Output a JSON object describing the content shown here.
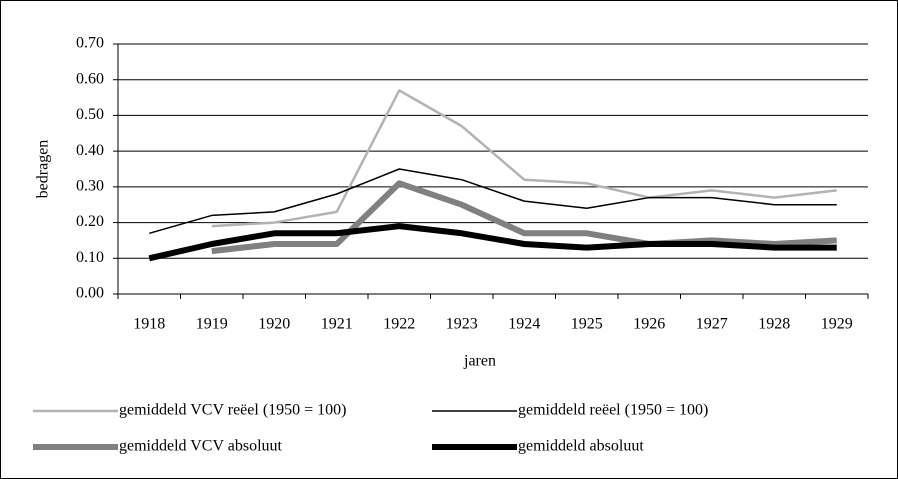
{
  "chart_data": {
    "type": "line",
    "xlabel": "jaren",
    "ylabel": "bedragen",
    "categories": [
      "1918",
      "1919",
      "1920",
      "1921",
      "1922",
      "1923",
      "1924",
      "1925",
      "1926",
      "1927",
      "1928",
      "1929"
    ],
    "series": [
      {
        "name": "gemiddeld VCV reëel (1950 = 100)",
        "color": "#b3b3b3",
        "width": 2.5,
        "values": [
          null,
          0.19,
          0.2,
          0.23,
          0.57,
          0.47,
          0.32,
          0.31,
          0.27,
          0.29,
          0.27,
          0.29
        ]
      },
      {
        "name": "gemiddeld reëel (1950 = 100)",
        "color": "#000000",
        "width": 1.5,
        "values": [
          0.17,
          0.22,
          0.23,
          0.28,
          0.35,
          0.32,
          0.26,
          0.24,
          0.27,
          0.27,
          0.25,
          0.25
        ]
      },
      {
        "name": "gemiddeld VCV absoluut",
        "color": "#808080",
        "width": 6,
        "values": [
          null,
          0.12,
          0.14,
          0.14,
          0.31,
          0.25,
          0.17,
          0.17,
          0.14,
          0.15,
          0.14,
          0.15
        ]
      },
      {
        "name": "gemiddeld absoluut",
        "color": "#000000",
        "width": 6,
        "values": [
          0.1,
          0.14,
          0.17,
          0.17,
          0.19,
          0.17,
          0.14,
          0.13,
          0.14,
          0.14,
          0.13,
          0.13
        ]
      }
    ],
    "ylim": [
      0,
      0.7
    ],
    "yticks": [
      {
        "value": 0,
        "label": "0.00"
      },
      {
        "value": 0.1,
        "label": "0.10"
      },
      {
        "value": 0.2,
        "label": "0.20"
      },
      {
        "value": 0.3,
        "label": "0.30"
      },
      {
        "value": 0.4,
        "label": "0.40"
      },
      {
        "value": 0.5,
        "label": "0.50"
      },
      {
        "value": 0.6,
        "label": "0.60"
      },
      {
        "value": 0.7,
        "label": "0.70"
      }
    ],
    "grid": true
  }
}
